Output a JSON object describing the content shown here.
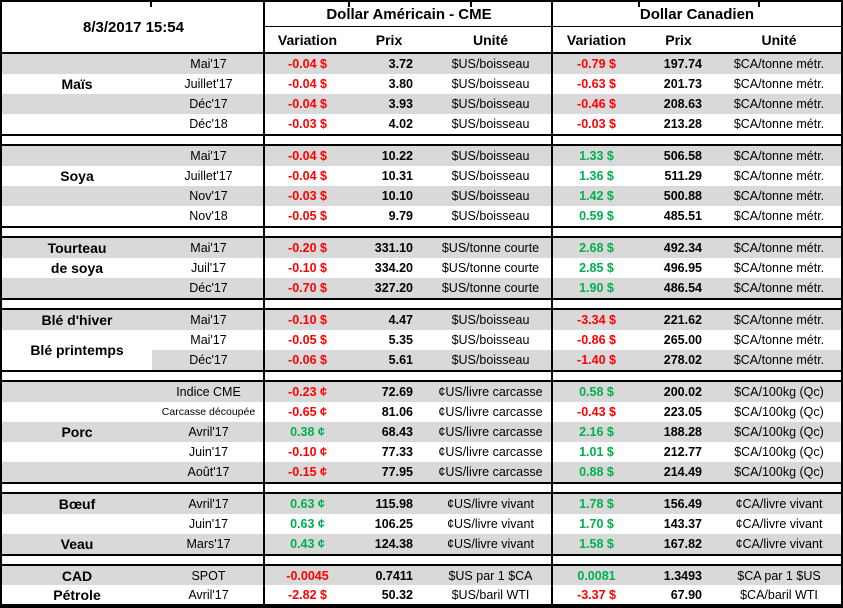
{
  "header": {
    "timestamp": "8/3/2017 15:54",
    "groups": {
      "us": "Dollar Américain - CME",
      "cad": "Dollar Canadien"
    },
    "sub": [
      "Variation",
      "Prix",
      "Unité"
    ]
  },
  "colors": {
    "negative": "#FF0000",
    "positive": "#00B050",
    "row_shade": "#D9D9D9",
    "border": "#000000"
  },
  "sections": [
    {
      "id": "mais",
      "rows": [
        {
          "shade": true,
          "label": "",
          "month": "Mai'17",
          "us_var": "-0.04 $",
          "us_dir": "neg",
          "us_prix": "3.72",
          "us_unit": "$US/boisseau",
          "cad_var": "-0.79 $",
          "cad_dir": "neg",
          "cad_prix": "197.74",
          "cad_unit": "$CA/tonne métr."
        },
        {
          "shade": false,
          "label": "Maïs",
          "month": "Juillet'17",
          "us_var": "-0.04 $",
          "us_dir": "neg",
          "us_prix": "3.80",
          "us_unit": "$US/boisseau",
          "cad_var": "-0.63 $",
          "cad_dir": "neg",
          "cad_prix": "201.73",
          "cad_unit": "$CA/tonne métr."
        },
        {
          "shade": true,
          "label": "",
          "month": "Déc'17",
          "us_var": "-0.04 $",
          "us_dir": "neg",
          "us_prix": "3.93",
          "us_unit": "$US/boisseau",
          "cad_var": "-0.46 $",
          "cad_dir": "neg",
          "cad_prix": "208.63",
          "cad_unit": "$CA/tonne métr."
        },
        {
          "shade": false,
          "label": "",
          "month": "Déc'18",
          "us_var": "-0.03 $",
          "us_dir": "neg",
          "us_prix": "4.02",
          "us_unit": "$US/boisseau",
          "cad_var": "-0.03 $",
          "cad_dir": "neg",
          "cad_prix": "213.28",
          "cad_unit": "$CA/tonne métr."
        }
      ]
    },
    {
      "id": "soya",
      "rows": [
        {
          "shade": true,
          "label": "",
          "month": "Mai'17",
          "us_var": "-0.04 $",
          "us_dir": "neg",
          "us_prix": "10.22",
          "us_unit": "$US/boisseau",
          "cad_var": "1.33 $",
          "cad_dir": "pos",
          "cad_prix": "506.58",
          "cad_unit": "$CA/tonne métr."
        },
        {
          "shade": false,
          "label": "Soya",
          "month": "Juillet'17",
          "us_var": "-0.04 $",
          "us_dir": "neg",
          "us_prix": "10.31",
          "us_unit": "$US/boisseau",
          "cad_var": "1.36 $",
          "cad_dir": "pos",
          "cad_prix": "511.29",
          "cad_unit": "$CA/tonne métr."
        },
        {
          "shade": true,
          "label": "",
          "month": "Nov'17",
          "us_var": "-0.03 $",
          "us_dir": "neg",
          "us_prix": "10.10",
          "us_unit": "$US/boisseau",
          "cad_var": "1.42 $",
          "cad_dir": "pos",
          "cad_prix": "500.88",
          "cad_unit": "$CA/tonne métr."
        },
        {
          "shade": false,
          "label": "",
          "month": "Nov'18",
          "us_var": "-0.05 $",
          "us_dir": "neg",
          "us_prix": "9.79",
          "us_unit": "$US/boisseau",
          "cad_var": "0.59 $",
          "cad_dir": "pos",
          "cad_prix": "485.51",
          "cad_unit": "$CA/tonne métr."
        }
      ]
    },
    {
      "id": "tourteau",
      "rows": [
        {
          "shade": true,
          "label": "Tourteau",
          "month": "Mai'17",
          "us_var": "-0.20 $",
          "us_dir": "neg",
          "us_prix": "331.10",
          "us_unit": "$US/tonne courte",
          "cad_var": "2.68 $",
          "cad_dir": "pos",
          "cad_prix": "492.34",
          "cad_unit": "$CA/tonne métr."
        },
        {
          "shade": false,
          "label": "de soya",
          "month": "Juil'17",
          "us_var": "-0.10 $",
          "us_dir": "neg",
          "us_prix": "334.20",
          "us_unit": "$US/tonne courte",
          "cad_var": "2.85 $",
          "cad_dir": "pos",
          "cad_prix": "496.95",
          "cad_unit": "$CA/tonne métr."
        },
        {
          "shade": true,
          "label": "",
          "month": "Déc'17",
          "us_var": "-0.70 $",
          "us_dir": "neg",
          "us_prix": "327.20",
          "us_unit": "$US/tonne courte",
          "cad_var": "1.90 $",
          "cad_dir": "pos",
          "cad_prix": "486.54",
          "cad_unit": "$CA/tonne métr."
        }
      ]
    },
    {
      "id": "ble",
      "merged_label": {
        "text": "Blé printemps"
      },
      "rows": [
        {
          "shade": true,
          "label": "Blé d'hiver",
          "month": "Mai'17",
          "us_var": "-0.10 $",
          "us_dir": "neg",
          "us_prix": "4.47",
          "us_unit": "$US/boisseau",
          "cad_var": "-3.34 $",
          "cad_dir": "neg",
          "cad_prix": "221.62",
          "cad_unit": "$CA/tonne métr."
        },
        {
          "shade": false,
          "label": "",
          "month": "Mai'17",
          "us_var": "-0.05 $",
          "us_dir": "neg",
          "us_prix": "5.35",
          "us_unit": "$US/boisseau",
          "cad_var": "-0.86 $",
          "cad_dir": "neg",
          "cad_prix": "265.00",
          "cad_unit": "$CA/tonne métr."
        },
        {
          "shade": true,
          "label": "",
          "month": "Déc'17",
          "us_var": "-0.06 $",
          "us_dir": "neg",
          "us_prix": "5.61",
          "us_unit": "$US/boisseau",
          "cad_var": "-1.40 $",
          "cad_dir": "neg",
          "cad_prix": "278.02",
          "cad_unit": "$CA/tonne métr."
        }
      ]
    },
    {
      "id": "porc",
      "rows": [
        {
          "shade": true,
          "label": "",
          "month": "Indice CME",
          "month_small": false,
          "us_var": "-0.23 ¢",
          "us_dir": "neg",
          "us_prix": "72.69",
          "us_unit": "¢US/livre carcasse",
          "cad_var": "0.58 $",
          "cad_dir": "pos",
          "cad_prix": "200.02",
          "cad_unit": "$CA/100kg (Qc)"
        },
        {
          "shade": false,
          "label": "",
          "month": "Carcasse découpée",
          "month_small": true,
          "us_var": "-0.65 ¢",
          "us_dir": "neg",
          "us_prix": "81.06",
          "us_unit": "¢US/livre carcasse",
          "cad_var": "-0.43 $",
          "cad_dir": "neg",
          "cad_prix": "223.05",
          "cad_unit": "$CA/100kg (Qc)"
        },
        {
          "shade": true,
          "label": "Porc",
          "month": "Avril'17",
          "month_small": false,
          "us_var": "0.38 ¢",
          "us_dir": "pos",
          "us_prix": "68.43",
          "us_unit": "¢US/livre carcasse",
          "cad_var": "2.16 $",
          "cad_dir": "pos",
          "cad_prix": "188.28",
          "cad_unit": "$CA/100kg (Qc)"
        },
        {
          "shade": false,
          "label": "",
          "month": "Juin'17",
          "month_small": false,
          "us_var": "-0.10 ¢",
          "us_dir": "neg",
          "us_prix": "77.33",
          "us_unit": "¢US/livre carcasse",
          "cad_var": "1.01 $",
          "cad_dir": "pos",
          "cad_prix": "212.77",
          "cad_unit": "$CA/100kg (Qc)"
        },
        {
          "shade": true,
          "label": "",
          "month": "Août'17",
          "month_small": false,
          "us_var": "-0.15 ¢",
          "us_dir": "neg",
          "us_prix": "77.95",
          "us_unit": "¢US/livre carcasse",
          "cad_var": "0.88 $",
          "cad_dir": "pos",
          "cad_prix": "214.49",
          "cad_unit": "$CA/100kg (Qc)"
        }
      ]
    },
    {
      "id": "boeuf",
      "rows": [
        {
          "shade": true,
          "label": "Bœuf",
          "month": "Avril'17",
          "us_var": "0.63 ¢",
          "us_dir": "pos",
          "us_prix": "115.98",
          "us_unit": "¢US/livre vivant",
          "cad_var": "1.78 $",
          "cad_dir": "pos",
          "cad_prix": "156.49",
          "cad_unit": "¢CA/livre vivant"
        },
        {
          "shade": false,
          "label": "",
          "month": "Juin'17",
          "us_var": "0.63 ¢",
          "us_dir": "pos",
          "us_prix": "106.25",
          "us_unit": "¢US/livre vivant",
          "cad_var": "1.70 $",
          "cad_dir": "pos",
          "cad_prix": "143.37",
          "cad_unit": "¢CA/livre vivant"
        },
        {
          "shade": true,
          "label": "Veau",
          "month": "Mars'17",
          "us_var": "0.43 ¢",
          "us_dir": "pos",
          "us_prix": "124.38",
          "us_unit": "¢US/livre vivant",
          "cad_var": "1.58 $",
          "cad_dir": "pos",
          "cad_prix": "167.82",
          "cad_unit": "¢CA/livre vivant"
        }
      ]
    },
    {
      "id": "cad",
      "rows": [
        {
          "shade": true,
          "label": "CAD",
          "month": "SPOT",
          "us_var": "-0.0045",
          "us_dir": "neg",
          "us_prix": "0.7411",
          "us_unit": "$US par 1 $CA",
          "cad_var": "0.0081",
          "cad_dir": "pos",
          "cad_prix": "1.3493",
          "cad_unit": "$CA par 1 $US"
        },
        {
          "shade": false,
          "label": "Pétrole",
          "month": "Avril'17",
          "us_var": "-2.82 $",
          "us_dir": "neg",
          "us_prix": "50.32",
          "us_unit": "$US/baril WTI",
          "cad_var": "-3.37 $",
          "cad_dir": "neg",
          "cad_prix": "67.90",
          "cad_unit": "$CA/baril WTI"
        }
      ]
    }
  ]
}
